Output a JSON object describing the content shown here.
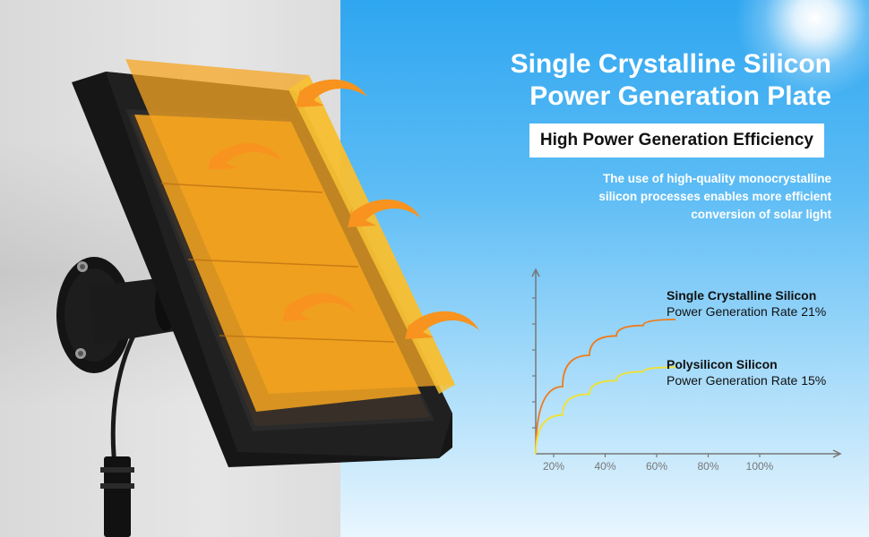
{
  "headline": {
    "line1": "Single Crystalline Silicon",
    "line2": "Power Generation Plate"
  },
  "badge": "High Power Generation Efficiency",
  "description": {
    "line1": "The use of high-quality monocrystalline",
    "line2": "silicon processes enables more efficient",
    "line3": "conversion of solar light"
  },
  "colors": {
    "sky_top": "#2fa6f0",
    "sky_bottom": "#e9f6fe",
    "mono_curve": "#f07a1a",
    "poly_curve": "#f2e22e",
    "panel_overlay": "#f5a623",
    "arrow": "#f7931e"
  },
  "icons": [
    "solar-panel-icon",
    "wall-mount-icon",
    "cable-icon",
    "sunlight-arrow-icon",
    "sun-icon"
  ],
  "chart_data": {
    "type": "line",
    "x_ticks": [
      "20%",
      "40%",
      "60%",
      "80%",
      "100%"
    ],
    "series": [
      {
        "name_line1": "Single Crystalline Silicon",
        "name_line2": "Power Generation Rate 21%",
        "x": [
          0.1,
          0.2,
          0.3,
          0.4,
          0.5,
          0.62
        ],
        "y": [
          0.0,
          0.45,
          0.66,
          0.79,
          0.86,
          0.9
        ]
      },
      {
        "name_line1": "Polysilicon Silicon",
        "name_line2": "Power Generation Rate 15%",
        "x": [
          0.1,
          0.2,
          0.3,
          0.4,
          0.5,
          0.62
        ],
        "y": [
          0.0,
          0.26,
          0.4,
          0.49,
          0.55,
          0.58
        ]
      }
    ],
    "xlim": [
      0.1,
      1.2
    ],
    "ylim": [
      0,
      1.2
    ]
  }
}
